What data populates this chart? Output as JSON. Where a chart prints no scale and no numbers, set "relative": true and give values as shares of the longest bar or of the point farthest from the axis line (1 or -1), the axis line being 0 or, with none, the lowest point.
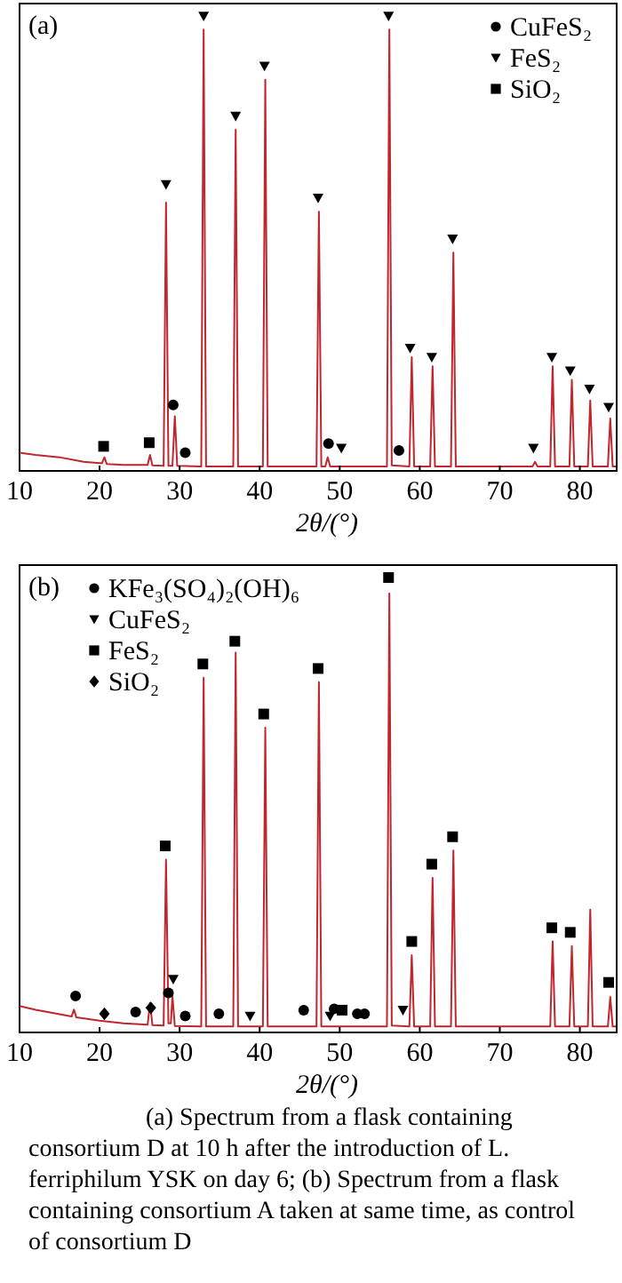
{
  "chart_data": [
    {
      "type": "line",
      "title": "(a)",
      "xlabel": "2θ/(°)",
      "relative": true,
      "xlim": [
        10,
        84.6
      ],
      "xticks": [
        10,
        20,
        30,
        40,
        50,
        60,
        70,
        80
      ],
      "legend": "top right",
      "series": [
        {
          "color": "#c0262d",
          "x": [
            10,
            12,
            15,
            18,
            20,
            20.3,
            20.6,
            20.9,
            23,
            26,
            26.3,
            26.6,
            28,
            28.3,
            28.6,
            29.1,
            29.4,
            29.7,
            32.7,
            33,
            33.3,
            36.7,
            37,
            37.3,
            40.4,
            40.7,
            41,
            47.1,
            47.4,
            47.7,
            48.2,
            48.5,
            48.8,
            55.9,
            56.2,
            56.5,
            58.7,
            59,
            59.3,
            61.3,
            61.6,
            61.9,
            63.9,
            64.2,
            64.5,
            74.1,
            74.4,
            74.7,
            76.3,
            76.6,
            76.9,
            78.7,
            79,
            79.3,
            81,
            81.3,
            81.6,
            83.5,
            83.8,
            84.1,
            84.5
          ],
          "values": [
            0.04,
            0.035,
            0.03,
            0.02,
            0.017,
            0.017,
            0.03,
            0.015,
            0.013,
            0.013,
            0.035,
            0.012,
            0.011,
            0.59,
            0.011,
            0.011,
            0.12,
            0.011,
            0.01,
            0.97,
            0.01,
            0.01,
            0.75,
            0.01,
            0.01,
            0.86,
            0.01,
            0.01,
            0.57,
            0.01,
            0.01,
            0.03,
            0.01,
            0.01,
            0.97,
            0.012,
            0.01,
            0.25,
            0.01,
            0.01,
            0.23,
            0.01,
            0.01,
            0.48,
            0.01,
            0.01,
            0.02,
            0.01,
            0.01,
            0.23,
            0.01,
            0.01,
            0.2,
            0.01,
            0.01,
            0.155,
            0.01,
            0.01,
            0.115,
            0.01,
            0.01
          ]
        },
        {
          "type": "scatter",
          "name": "CuFeS₂",
          "color": "#000000",
          "marker": "circle",
          "x": [
            29.2,
            30.7,
            48.6,
            57.4
          ],
          "values": [
            0.145,
            0.04,
            0.06,
            0.045
          ]
        },
        {
          "type": "scatter",
          "name": "FeS₂",
          "color": "#000000",
          "marker": "triangle",
          "x": [
            28.3,
            33.0,
            37.0,
            40.6,
            47.3,
            50.2,
            56.1,
            58.8,
            61.5,
            64.1,
            74.2,
            76.5,
            78.8,
            81.2,
            83.6
          ],
          "values": [
            0.63,
            1.0,
            0.78,
            0.89,
            0.6,
            0.05,
            1.0,
            0.27,
            0.25,
            0.51,
            0.05,
            0.25,
            0.22,
            0.18,
            0.14
          ]
        },
        {
          "type": "scatter",
          "name": "SiO₂",
          "color": "#000000",
          "marker": "square",
          "x": [
            20.5,
            26.2
          ],
          "values": [
            0.054,
            0.062
          ]
        }
      ]
    },
    {
      "type": "line",
      "title": "(b)",
      "xlabel": "2θ/(°)",
      "relative": true,
      "xlim": [
        10,
        84.6
      ],
      "xticks": [
        10,
        20,
        30,
        40,
        50,
        60,
        70,
        80
      ],
      "legend": "top left",
      "annotations": [
        "(a) Spectrum from a flask containing consortium D at 10 h after the introduction of L. ferriphilum YSK on day 6; (b) Spectrum from a flask containing consortium A taken at same time, as control of consortium D"
      ],
      "series": [
        {
          "color": "#c0262d",
          "x": [
            10,
            12,
            15,
            16.5,
            16.8,
            17.1,
            20,
            23,
            26,
            26.3,
            26.6,
            28,
            28.3,
            28.6,
            28.9,
            29.1,
            29.4,
            32.7,
            33,
            33.3,
            36.7,
            37,
            37.3,
            40.4,
            40.7,
            41,
            47.1,
            47.4,
            47.7,
            55.9,
            56.2,
            56.5,
            58.7,
            59,
            59.3,
            61.3,
            61.6,
            61.9,
            63.9,
            64.2,
            64.5,
            76.3,
            76.6,
            76.9,
            78.7,
            79,
            79.3,
            81,
            81.3,
            81.6,
            83.5,
            83.8,
            84.1,
            84.5
          ],
          "values": [
            0.058,
            0.05,
            0.04,
            0.035,
            0.05,
            0.033,
            0.026,
            0.02,
            0.017,
            0.065,
            0.016,
            0.015,
            0.38,
            0.02,
            0.02,
            0.08,
            0.014,
            0.013,
            0.78,
            0.013,
            0.013,
            0.835,
            0.013,
            0.013,
            0.67,
            0.013,
            0.013,
            0.77,
            0.013,
            0.013,
            0.965,
            0.015,
            0.013,
            0.17,
            0.013,
            0.013,
            0.34,
            0.013,
            0.013,
            0.4,
            0.013,
            0.013,
            0.2,
            0.013,
            0.013,
            0.19,
            0.013,
            0.013,
            0.27,
            0.013,
            0.013,
            0.078,
            0.013,
            0.013
          ]
        },
        {
          "type": "scatter",
          "name": "KFe₃(SO₄)₂(OH)₆",
          "color": "#000000",
          "marker": "circle",
          "x": [
            17.0,
            24.5,
            28.6,
            30.7,
            34.9,
            45.5,
            49.3,
            52.2,
            53.1
          ],
          "values": [
            0.08,
            0.045,
            0.087,
            0.036,
            0.041,
            0.049,
            0.052,
            0.041,
            0.041
          ]
        },
        {
          "type": "scatter",
          "name": "CuFeS₂",
          "color": "#000000",
          "marker": "triangle",
          "x": [
            29.2,
            38.8,
            48.8,
            57.9
          ],
          "values": [
            0.117,
            0.036,
            0.036,
            0.049
          ]
        },
        {
          "type": "scatter",
          "name": "FeS₂",
          "color": "#000000",
          "marker": "square",
          "x": [
            28.2,
            32.9,
            36.9,
            40.5,
            47.3,
            50.3,
            56.1,
            59.0,
            61.5,
            64.1,
            76.5,
            78.8,
            83.6
          ],
          "values": [
            0.41,
            0.81,
            0.86,
            0.7,
            0.8,
            0.049,
            1.0,
            0.2,
            0.37,
            0.43,
            0.23,
            0.22,
            0.11
          ]
        },
        {
          "type": "scatter",
          "name": "SiO₂",
          "color": "#000000",
          "marker": "diamond",
          "x": [
            20.6,
            26.4
          ],
          "values": [
            0.041,
            0.054
          ]
        }
      ]
    }
  ]
}
